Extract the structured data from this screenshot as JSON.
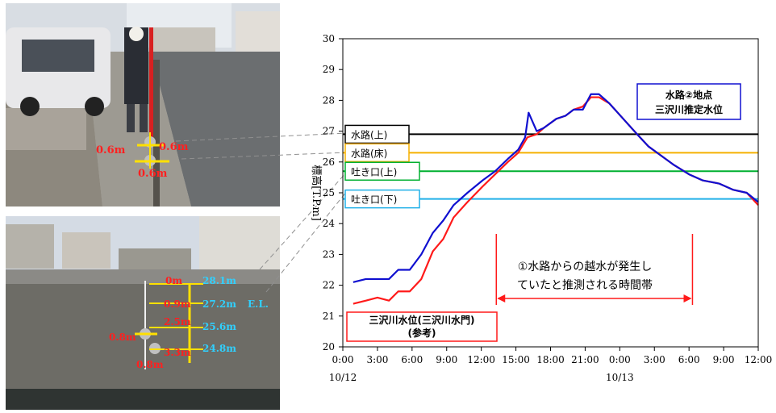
{
  "photo_top": {
    "labels": [
      "0.6m",
      "0.6m",
      "0.6m"
    ]
  },
  "photo_bottom": {
    "labels": [
      "0m",
      "28.1m",
      "0.9m",
      "27.2m",
      "E.L.",
      "2.5m",
      "25.6m",
      "0.8m",
      "3.3m",
      "24.8m",
      "0.8m"
    ]
  },
  "chart_data": {
    "type": "line",
    "ylabel": "標高[T.P.m]",
    "ylim": [
      20,
      30
    ],
    "yticks": [
      "20",
      "21",
      "22",
      "23",
      "24",
      "25",
      "26",
      "27",
      "28",
      "29",
      "30"
    ],
    "xlim_hours": [
      0,
      36
    ],
    "xticks": [
      "0:00",
      "3:00",
      "6:00",
      "9:00",
      "12:00",
      "15:00",
      "18:00",
      "21:00",
      "0:00",
      "3:00",
      "6:00",
      "9:00",
      "12:00"
    ],
    "date_labels": [
      {
        "text": "10/12",
        "at": "0:00"
      },
      {
        "text": "10/13",
        "at": "0:00"
      }
    ],
    "series": [
      {
        "name": "水路②地点 三沢川推定水位",
        "color": "#1010d0",
        "hours": [
          0.9,
          2,
          3,
          4,
          4.8,
          5.8,
          6.8,
          7.8,
          8.7,
          9.6,
          10.8,
          12.1,
          13.2,
          14.3,
          15.2,
          15.8,
          16.1,
          16.8,
          17.4,
          18.5,
          19.3,
          20,
          20.8,
          21.5,
          22.2,
          23.1,
          24.3,
          25.5,
          26.5,
          27.6,
          28.7,
          30,
          31.2,
          32.6,
          33.8,
          35,
          36
        ],
        "values": [
          22.1,
          22.2,
          22.2,
          22.2,
          22.5,
          22.5,
          23,
          23.7,
          24.1,
          24.6,
          25,
          25.4,
          25.7,
          26.1,
          26.4,
          26.8,
          27.6,
          27,
          27.1,
          27.4,
          27.5,
          27.7,
          27.7,
          28.2,
          28.2,
          27.9,
          27.4,
          26.9,
          26.5,
          26.2,
          25.9,
          25.6,
          25.4,
          25.3,
          25.1,
          25,
          24.7
        ]
      },
      {
        "name": "三沢川水位(三沢川水門)(参考)",
        "color": "#ff1a1a",
        "hours": [
          0.9,
          2,
          3,
          4,
          4.8,
          5.8,
          6.8,
          7.8,
          8.7,
          9.6,
          10.8,
          12.1,
          13.2,
          14.3,
          15.2,
          16,
          16.8,
          17.4,
          18.5,
          19.3,
          20,
          20.8,
          21.5,
          22.2,
          23.1,
          24.3,
          25.5,
          26.5,
          27.6,
          28.7,
          30,
          31.2,
          32.6,
          33.8,
          35,
          36
        ],
        "values": [
          21.4,
          21.5,
          21.6,
          21.5,
          21.8,
          21.8,
          22.2,
          23.1,
          23.5,
          24.2,
          24.7,
          25.2,
          25.6,
          26,
          26.3,
          26.8,
          26.9,
          27.1,
          27.4,
          27.5,
          27.7,
          27.8,
          28.1,
          28.1,
          27.9,
          27.4,
          26.9,
          26.5,
          26.2,
          25.9,
          25.6,
          25.4,
          25.3,
          25.1,
          25,
          24.6
        ]
      }
    ],
    "reference_lines": [
      {
        "label": "水路(上)",
        "value": 26.9,
        "color": "#000000"
      },
      {
        "label": "水路(床)",
        "value": 26.3,
        "color": "#f5b000"
      },
      {
        "label": "吐き口(上)",
        "value": 25.7,
        "color": "#00b030"
      },
      {
        "label": "吐き口(下)",
        "value": 24.8,
        "color": "#20b0e8"
      }
    ],
    "annotation": {
      "text_line1": "①水路からの越水が発生し",
      "text_line2": "ていたと推測される時間帯",
      "start_hour": 13.3,
      "end_hour": 30.3,
      "color": "#ff1a1a"
    },
    "legend_blue": {
      "line1": "水路②地点",
      "line2": "三沢川推定水位"
    },
    "legend_red": {
      "line1": "三沢川水位(三沢川水門)",
      "line2": "(参考)"
    }
  }
}
